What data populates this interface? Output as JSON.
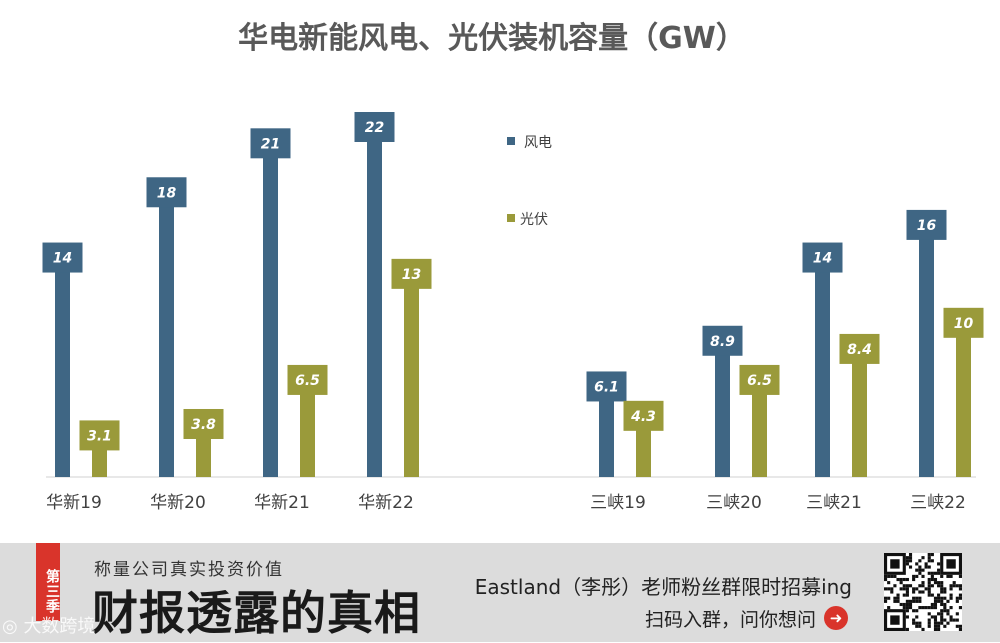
{
  "chart_data": {
    "type": "bar",
    "title": "华电新能风电、光伏装机容量（GW）",
    "categories": [
      "华新19",
      "华新20",
      "华新21",
      "华新22",
      "三峡19",
      "三峡20",
      "三峡21",
      "三峡22"
    ],
    "series": [
      {
        "name": "风电",
        "values": [
          14,
          18,
          21,
          22,
          6.1,
          8.9,
          14,
          16
        ],
        "labels": [
          "14",
          "18",
          "21",
          "22",
          "6.1",
          "8.9",
          "14",
          "16"
        ],
        "color": "#3f6684"
      },
      {
        "name": "光伏",
        "values": [
          3.1,
          3.8,
          6.5,
          13,
          4.3,
          6.5,
          8.4,
          10
        ],
        "labels": [
          "3.1",
          "3.8",
          "6.5",
          "13",
          "4.3",
          "6.5",
          "8.4",
          "10"
        ],
        "color": "#9a9a3a"
      }
    ],
    "ylim": [
      0,
      22
    ],
    "legend_position": "right",
    "grid": false
  },
  "banner": {
    "season": "第三季",
    "slogan": "称量公司真实投资价值",
    "headline": "财报透露的真相",
    "recruit": "Eastland（李彤）老师粉丝群限时招募ing",
    "scan": "扫码入群，问你想问",
    "arrow_icon": "arrow-right-icon",
    "qr_icon": "qr-code-icon",
    "watermark": "大数跨境"
  }
}
